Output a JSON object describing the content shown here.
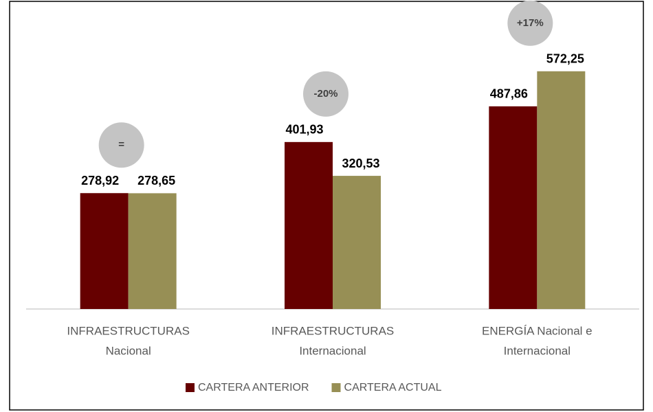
{
  "chart_data": {
    "type": "bar",
    "categories": [
      [
        "INFRAESTRUCTURAS",
        "Nacional"
      ],
      [
        "INFRAESTRUCTURAS",
        "Internacional"
      ],
      [
        "ENERGÍA Nacional e",
        "Internacional"
      ]
    ],
    "series": [
      {
        "name": "CARTERA ANTERIOR",
        "color": "#660000",
        "values": [
          278.92,
          401.93,
          487.86
        ],
        "value_labels": [
          "278,92",
          "401,93",
          "487,86"
        ]
      },
      {
        "name": "CARTERA ACTUAL",
        "color": "#978f55",
        "values": [
          278.65,
          320.53,
          572.25
        ],
        "value_labels": [
          "278,65",
          "320,53",
          "572,25"
        ]
      }
    ],
    "annotations": [
      "=",
      "-20%",
      "+17%"
    ],
    "ylim": [
      0,
      600
    ],
    "legend": "bottom"
  }
}
